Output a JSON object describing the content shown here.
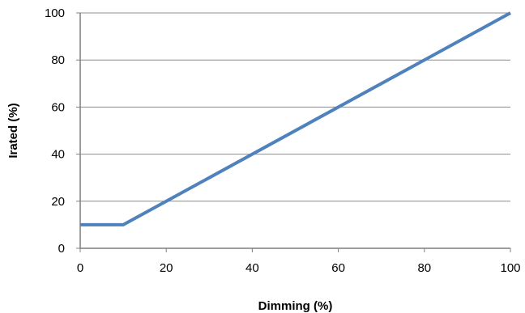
{
  "chart_data": {
    "type": "line",
    "xlabel": "Dimming (%)",
    "ylabel": "Irated (%)",
    "xlim": [
      0,
      100
    ],
    "ylim": [
      0,
      100
    ],
    "x_ticks": [
      0,
      20,
      40,
      60,
      80,
      100
    ],
    "y_ticks": [
      0,
      20,
      40,
      60,
      80,
      100
    ],
    "grid": "horizontal",
    "legend": "none",
    "series": [
      {
        "color": "#4F81BD",
        "points": [
          {
            "x": 0,
            "y": 10
          },
          {
            "x": 10,
            "y": 10
          },
          {
            "x": 100,
            "y": 100
          }
        ]
      }
    ]
  }
}
